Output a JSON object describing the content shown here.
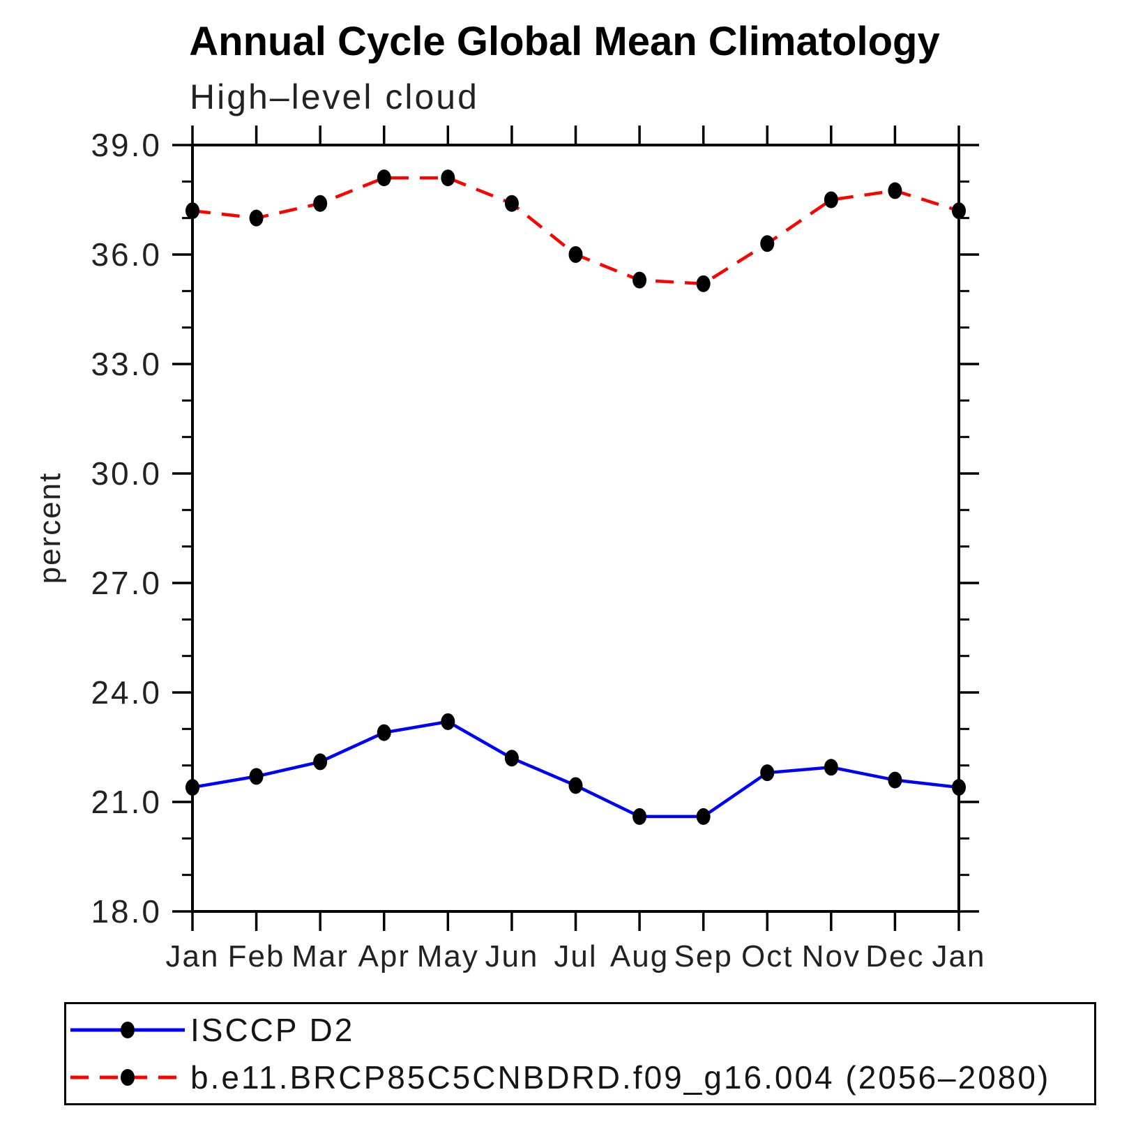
{
  "chart_data": {
    "type": "line",
    "title": "Annual Cycle Global Mean Climatology",
    "subtitle": "High–level cloud",
    "ylabel": "percent",
    "xlabel": "",
    "x_categories": [
      "Jan",
      "Feb",
      "Mar",
      "Apr",
      "May",
      "Jun",
      "Jul",
      "Aug",
      "Sep",
      "Oct",
      "Nov",
      "Dec",
      "Jan"
    ],
    "ylim": [
      18.0,
      39.0
    ],
    "y_major_tick_values": [
      18,
      21,
      24,
      27,
      30,
      33,
      36,
      39
    ],
    "y_major_tick_labels": [
      "18.0",
      "21.0",
      "24.0",
      "27.0",
      "30.0",
      "33.0",
      "36.0",
      "39.0"
    ],
    "y_minor_tick_step": 1.0,
    "grid": "off",
    "legend_position": "bottom",
    "marker": {
      "shape": "filled-circle",
      "color": "#000000"
    },
    "series": [
      {
        "name": "ISCCP D2",
        "color": "#0000ff",
        "line_style": "solid",
        "values": [
          21.4,
          21.7,
          22.1,
          22.9,
          23.2,
          22.2,
          21.45,
          20.6,
          20.6,
          21.8,
          21.95,
          21.6,
          21.4
        ]
      },
      {
        "name": "b.e11.BRCP85C5CNBDRD.f09_g16.004 (2056–2080)",
        "color": "#ff0000",
        "line_style": "dashed",
        "values": [
          37.2,
          37.0,
          37.4,
          38.1,
          38.1,
          37.4,
          36.0,
          35.3,
          35.2,
          36.3,
          37.5,
          37.75,
          37.2
        ]
      }
    ]
  }
}
